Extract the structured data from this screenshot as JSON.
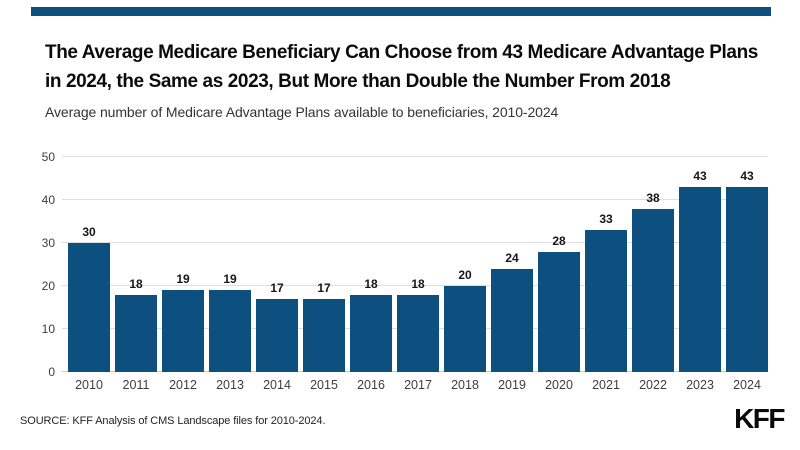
{
  "page": {
    "background": "#ffffff"
  },
  "brand": {
    "top_bar_color": "#0d5080",
    "logo_text": "KFF"
  },
  "header": {
    "title_lines": [
      "The Average Medicare Beneficiary Can Choose from 43 Medicare Advantage Plans",
      "in 2024, the Same as 2023, But More than Double the Number From 2018"
    ],
    "subtitle": "Average number of Medicare Advantage Plans available to beneficiaries, 2010-2024"
  },
  "chart_data": {
    "type": "bar",
    "title": "The Average Medicare Beneficiary Can Choose from 43 Medicare Advantage Plans in 2024, the Same as 2023, But More than Double the Number From 2018",
    "subtitle": "Average number of Medicare Advantage Plans available to beneficiaries, 2010-2024",
    "categories": [
      "2010",
      "2011",
      "2012",
      "2013",
      "2014",
      "2015",
      "2016",
      "2017",
      "2018",
      "2019",
      "2020",
      "2021",
      "2022",
      "2023",
      "2024"
    ],
    "values": [
      30,
      18,
      19,
      19,
      17,
      17,
      18,
      18,
      20,
      24,
      28,
      33,
      38,
      43,
      43
    ],
    "xlabel": "",
    "ylabel": "",
    "ylim": [
      0,
      50
    ],
    "yticks": [
      0,
      10,
      20,
      30,
      40,
      50
    ],
    "bar_color": "#0d5080",
    "grid": true,
    "value_labels": true,
    "legend": "none"
  },
  "footer": {
    "source": "SOURCE: KFF Analysis of CMS Landscape files for 2010-2024."
  }
}
